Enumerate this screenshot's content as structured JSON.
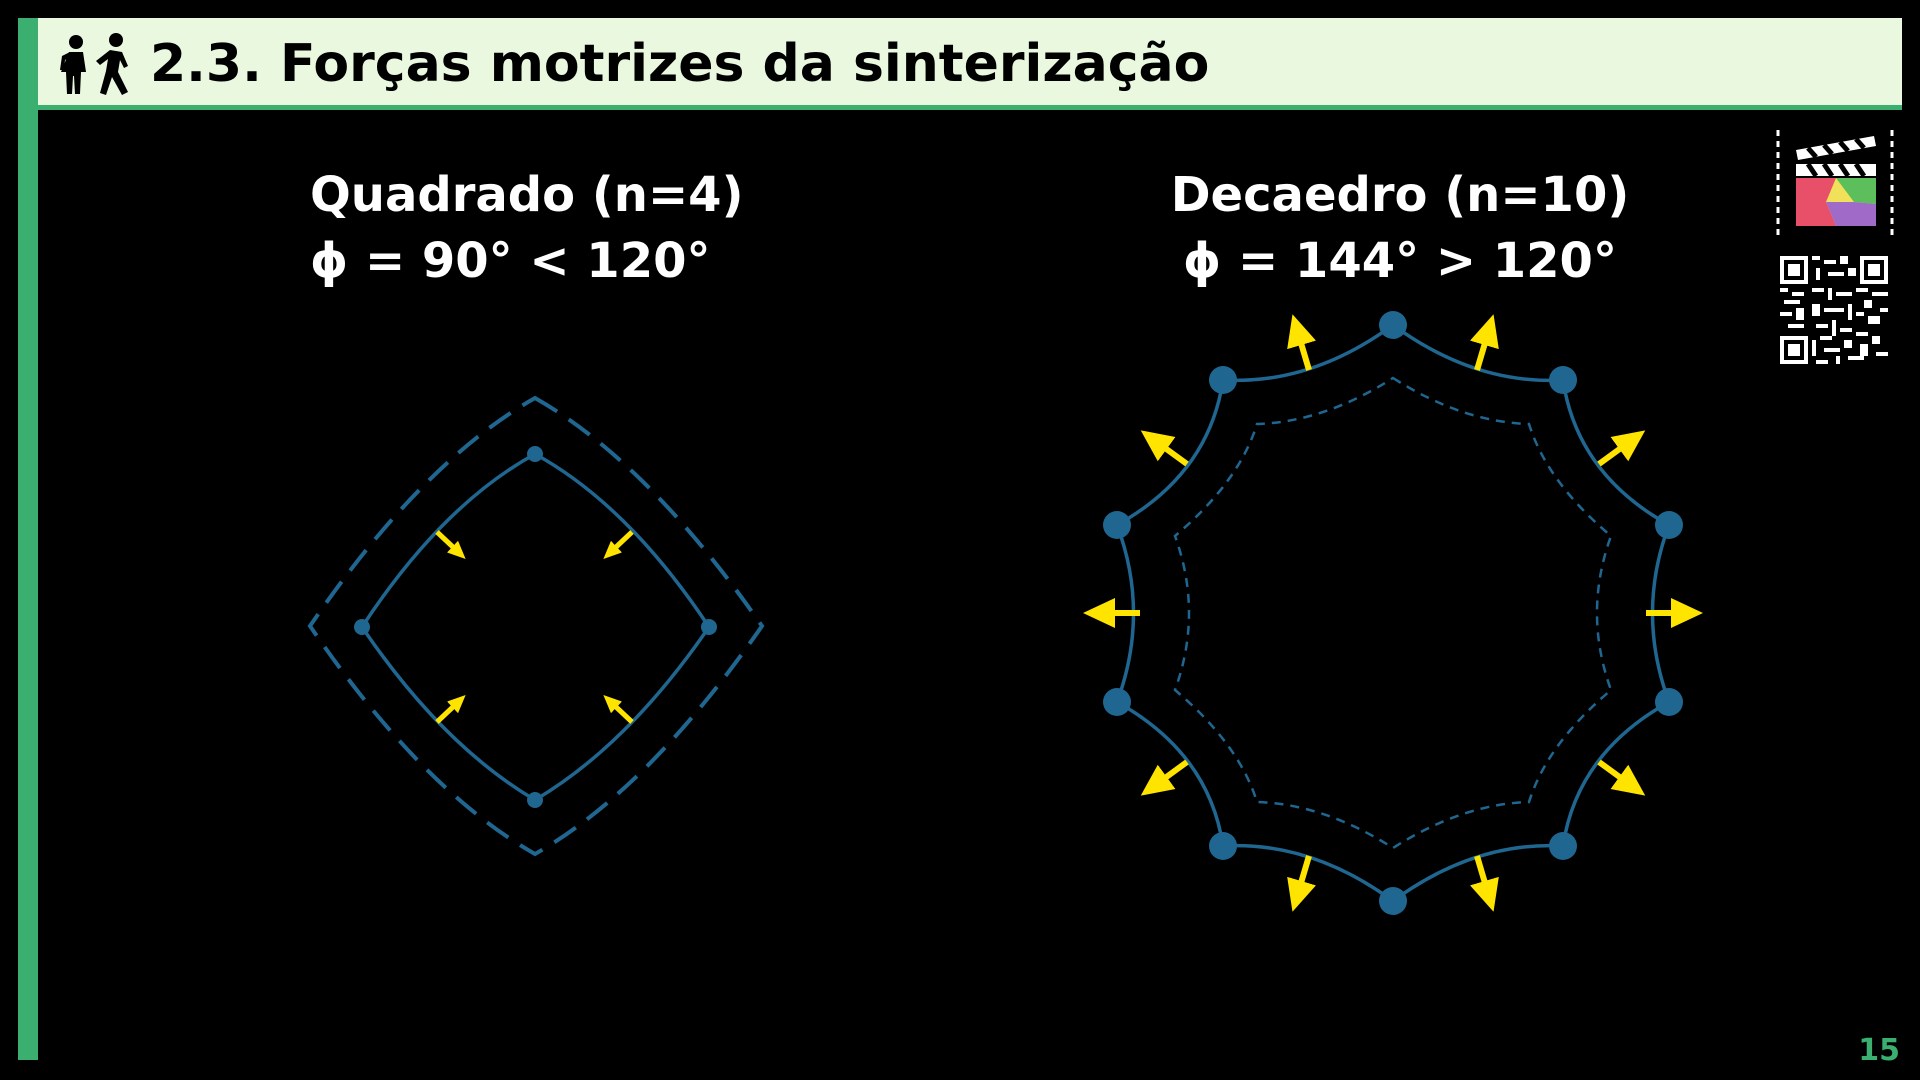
{
  "header": {
    "title": "2.3. Forças motrizes da sinterização",
    "icon": "people-walking-icon"
  },
  "square": {
    "name": "Quadrado (n=4)",
    "angle": "ϕ = 90° < 120°"
  },
  "decahedron": {
    "name": "Decaedro (n=10)",
    "angle": "ϕ = 144° > 120°"
  },
  "colors": {
    "accent": "#3aaf6f",
    "header_bg": "#e9f8df",
    "grain_line": "#1f6690",
    "arrow": "#ffe400"
  },
  "footer": {
    "page_number": "15"
  }
}
